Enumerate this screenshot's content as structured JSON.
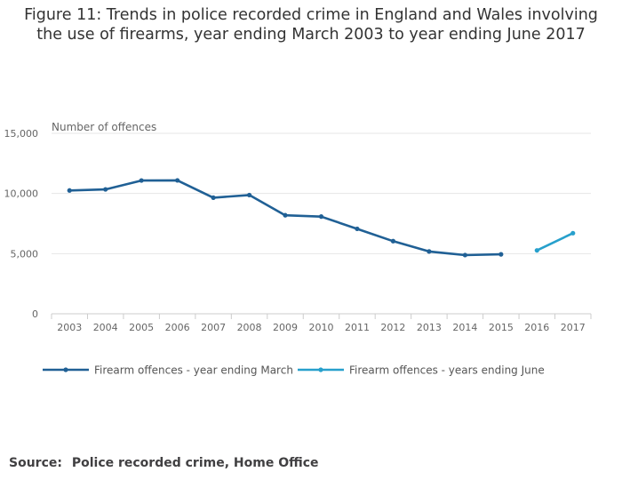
{
  "title": {
    "line1": "Figure 11: Trends in police recorded crime in England and Wales involving",
    "line2": "the use of firearms, year ending March 2003 to year ending June 2017"
  },
  "source": {
    "label": "Source:",
    "text": "Police recorded crime, Home Office"
  },
  "chart_data": {
    "type": "line",
    "title": "Figure 11: Trends in police recorded crime in England and Wales involving the use of firearms, year ending March 2003 to year ending June 2017",
    "ylabel": "Number of offences",
    "xlabel": "",
    "ylim": [
      0,
      15000
    ],
    "yticks": [
      0,
      5000,
      10000,
      15000
    ],
    "ytick_labels": [
      "0",
      "5,000",
      "10,000",
      "15,000"
    ],
    "categories": [
      "2003",
      "2004",
      "2005",
      "2006",
      "2007",
      "2008",
      "2009",
      "2010",
      "2011",
      "2012",
      "2013",
      "2014",
      "2015",
      "2016",
      "2017"
    ],
    "grid": true,
    "legend_position": "bottom",
    "series": [
      {
        "name": "Firearm offences - year ending March",
        "color": "#206095",
        "values": [
          10250,
          10340,
          11080,
          11090,
          9650,
          9870,
          8190,
          8080,
          7060,
          6040,
          5180,
          4880,
          4940,
          null,
          null
        ]
      },
      {
        "name": "Firearm offences - years ending June",
        "color": "#27a0cc",
        "values": [
          null,
          null,
          null,
          null,
          null,
          null,
          null,
          null,
          null,
          null,
          null,
          null,
          null,
          5270,
          6700
        ]
      }
    ]
  }
}
